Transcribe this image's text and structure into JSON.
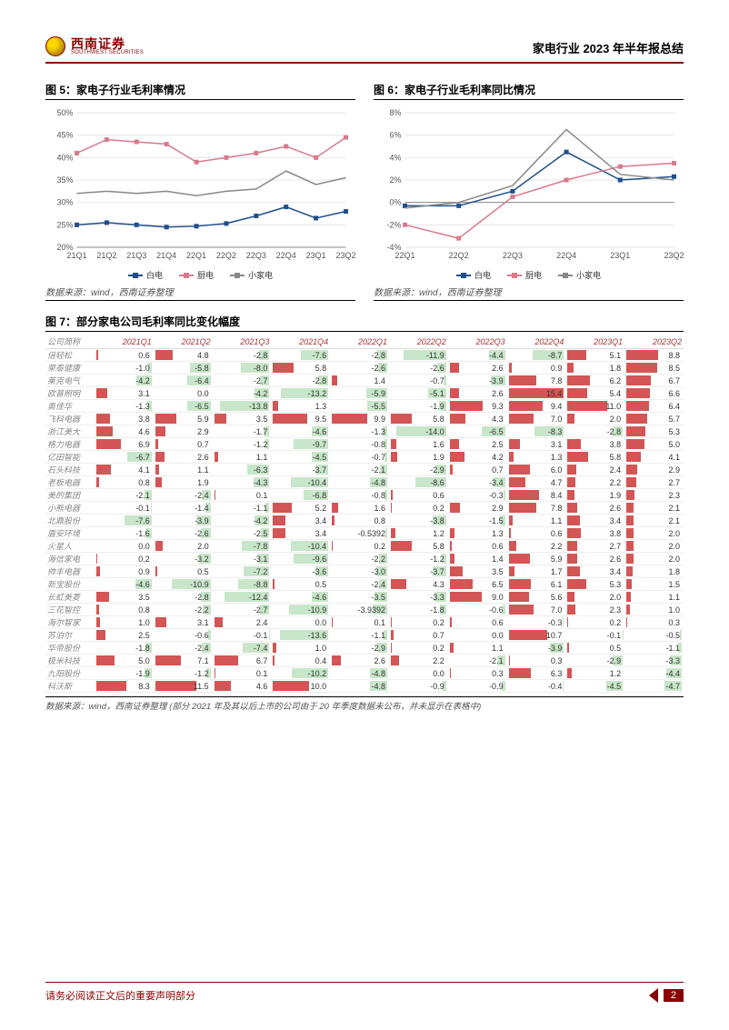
{
  "header": {
    "logo_cn": "西南证券",
    "logo_en": "SOUTHWEST SECURITIES",
    "title": "家电行业 2023 年半年报总结"
  },
  "fig5": {
    "title": "图 5：家电子行业毛利率情况",
    "type": "line",
    "xlabels": [
      "21Q1",
      "21Q2",
      "21Q3",
      "21Q4",
      "22Q1",
      "22Q2",
      "22Q3",
      "22Q4",
      "23Q1",
      "23Q2"
    ],
    "ylim": [
      20,
      50
    ],
    "ytick_step": 5,
    "series": [
      {
        "name": "白电",
        "color": "#1f4e8c",
        "marker": "square",
        "values": [
          25,
          25.5,
          25,
          24.5,
          24.7,
          25.3,
          27,
          29,
          26.5,
          28
        ]
      },
      {
        "name": "厨电",
        "color": "#d97a8c",
        "marker": "square",
        "values": [
          41,
          44,
          43.5,
          43,
          39,
          40,
          41,
          42.5,
          40,
          44.5
        ]
      },
      {
        "name": "小家电",
        "color": "#888888",
        "marker": "line",
        "values": [
          32,
          32.5,
          32,
          32.5,
          31.5,
          32.5,
          33,
          37,
          34,
          35.5
        ]
      }
    ],
    "source": "数据来源：wind，西南证券整理"
  },
  "fig6": {
    "title": "图 6：家电子行业毛利率同比情况",
    "type": "line",
    "xlabels": [
      "22Q1",
      "22Q2",
      "22Q3",
      "22Q4",
      "23Q1",
      "23Q2"
    ],
    "ylim": [
      -4,
      8
    ],
    "ytick_step": 2,
    "series": [
      {
        "name": "白电",
        "color": "#1f4e8c",
        "marker": "square",
        "values": [
          -0.3,
          -0.3,
          1.0,
          4.5,
          2.0,
          2.3
        ]
      },
      {
        "name": "厨电",
        "color": "#d97a8c",
        "marker": "square",
        "values": [
          -2.0,
          -3.2,
          0.5,
          2.0,
          3.2,
          3.5
        ]
      },
      {
        "name": "小家电",
        "color": "#888888",
        "marker": "line",
        "values": [
          -0.5,
          0.0,
          1.5,
          6.5,
          2.5,
          2.0
        ]
      }
    ],
    "source": "数据来源：wind，西南证券整理"
  },
  "fig7": {
    "title": "图 7：部分家电公司毛利率同比变化幅度",
    "columns": [
      "公司简称",
      "2021Q1",
      "2021Q2",
      "2021Q3",
      "2021Q4",
      "2022Q1",
      "2022Q2",
      "2022Q3",
      "2022Q4",
      "2023Q1",
      "2023Q2"
    ],
    "max_abs": 15.4,
    "rows": [
      [
        "倍轻松",
        0.6,
        4.8,
        -2.8,
        -7.6,
        -2.8,
        -11.9,
        -4.4,
        -8.7,
        5.1,
        8.8
      ],
      [
        "荣泰健康",
        -1.0,
        -5.8,
        -8.0,
        5.8,
        -2.6,
        -2.6,
        2.6,
        0.9,
        1.8,
        8.5
      ],
      [
        "莱克电气",
        -4.2,
        -6.4,
        -2.7,
        -2.8,
        1.4,
        -0.7,
        -3.9,
        7.8,
        6.2,
        6.7
      ],
      [
        "欧普照明",
        3.1,
        0.0,
        -4.2,
        -13.2,
        -5.9,
        -5.1,
        2.6,
        15.4,
        5.4,
        6.6
      ],
      [
        "奥佳华",
        -1.3,
        -6.5,
        -13.8,
        1.3,
        -5.5,
        -1.9,
        9.3,
        9.4,
        11.0,
        6.4
      ],
      [
        "飞科电器",
        3.8,
        5.9,
        3.5,
        9.5,
        9.9,
        5.8,
        4.3,
        7.0,
        2.0,
        5.7
      ],
      [
        "浙江美大",
        4.6,
        2.9,
        -1.7,
        -4.6,
        -1.3,
        -14.0,
        -6.5,
        -8.3,
        -2.8,
        5.3
      ],
      [
        "格力电器",
        6.9,
        0.7,
        -1.2,
        -9.7,
        -0.8,
        1.6,
        2.5,
        3.1,
        3.8,
        5.0
      ],
      [
        "亿田智能",
        -6.7,
        2.6,
        1.1,
        -4.5,
        -0.7,
        1.9,
        4.2,
        1.3,
        5.8,
        4.1
      ],
      [
        "石头科技",
        4.1,
        1.1,
        -6.3,
        -3.7,
        -2.1,
        -2.9,
        0.7,
        6.0,
        2.4,
        2.9
      ],
      [
        "老板电器",
        0.8,
        1.9,
        -4.3,
        -10.4,
        -4.8,
        -8.6,
        -3.4,
        4.7,
        2.2,
        2.7
      ],
      [
        "美的集团",
        -2.1,
        -2.4,
        0.1,
        -6.8,
        -0.8,
        0.6,
        -0.3,
        8.4,
        1.9,
        2.3
      ],
      [
        "小熊电器",
        -0.1,
        -1.4,
        -1.1,
        5.2,
        1.6,
        0.2,
        2.9,
        7.8,
        2.6,
        2.1
      ],
      [
        "北鼎股份",
        -7.6,
        -3.9,
        -4.2,
        3.4,
        0.8,
        -3.8,
        -1.5,
        1.1,
        3.4,
        2.1
      ],
      [
        "盾安环境",
        -1.6,
        -2.6,
        -2.5,
        3.4,
        -0.5392,
        1.2,
        1.3,
        0.6,
        3.8,
        2.0
      ],
      [
        "火星人",
        0.0,
        2.0,
        -7.8,
        -10.4,
        0.2,
        5.8,
        0.6,
        2.2,
        2.7,
        2.0
      ],
      [
        "海信家电",
        0.2,
        -3.2,
        -3.1,
        -9.6,
        -2.2,
        -1.2,
        1.4,
        5.9,
        2.6,
        2.0
      ],
      [
        "帅丰电器",
        0.9,
        0.5,
        -7.2,
        -3.6,
        -3.0,
        -3.7,
        3.5,
        1.7,
        3.4,
        1.8
      ],
      [
        "新宝股份",
        -4.6,
        -10.9,
        -8.8,
        0.5,
        -2.4,
        4.3,
        6.5,
        6.1,
        5.3,
        1.5
      ],
      [
        "长虹美菱",
        3.5,
        -2.8,
        -12.4,
        -4.6,
        -3.5,
        -3.3,
        9.0,
        5.6,
        2.0,
        1.1
      ],
      [
        "三花智控",
        0.8,
        -2.2,
        -2.7,
        -10.9,
        -3.9392,
        -1.8,
        -0.6,
        7.0,
        2.3,
        1.0
      ],
      [
        "海尔智家",
        1.0,
        3.1,
        2.4,
        0.0,
        0.1,
        0.2,
        0.6,
        -0.3,
        0.2,
        0.3
      ],
      [
        "苏泊尔",
        2.5,
        -0.6,
        -0.1,
        -13.6,
        -1.1,
        0.7,
        0.0,
        10.7,
        -0.1,
        -0.5
      ],
      [
        "华帝股份",
        -1.8,
        -2.4,
        -7.4,
        1.0,
        -2.9,
        0.2,
        1.1,
        -3.9,
        0.5,
        -1.1
      ],
      [
        "极米科技",
        5.0,
        7.1,
        6.7,
        0.4,
        2.6,
        2.2,
        -2.1,
        0.3,
        -2.9,
        -3.3
      ],
      [
        "九阳股份",
        -1.9,
        -1.2,
        0.1,
        -10.2,
        -4.8,
        0.0,
        0.3,
        6.3,
        1.2,
        -4.4
      ],
      [
        "科沃斯",
        8.3,
        11.5,
        4.6,
        10.0,
        -4.8,
        -0.9,
        -0.9,
        -0.4,
        -4.5,
        -4.7
      ]
    ],
    "source": "数据来源：wind，西南证券整理 (部分 2021 年及其以后上市的公司由于 20 年季度数据未公布，并未显示在表格中)"
  },
  "footer": {
    "text": "请务必阅读正文后的重要声明部分",
    "page": "2"
  },
  "legend_labels": [
    "白电",
    "厨电",
    "小家电"
  ]
}
